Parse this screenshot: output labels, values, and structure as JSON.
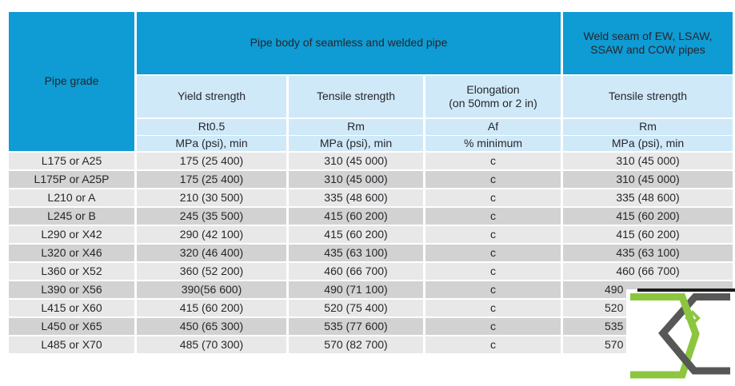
{
  "table": {
    "header": {
      "pipe_grade": "Pipe grade",
      "group_seamless": "Pipe body of seamless and welded pipe",
      "group_weld": "Weld seam of EW, LSAW,\nSSAW and COW pipes",
      "sub": [
        "Yield strength",
        "Tensile strength",
        "Elongation\n(on 50mm or 2 in)",
        "Tensile strength"
      ],
      "symbols": [
        "Rt0.5",
        "Rm",
        "Af",
        "Rm"
      ],
      "units": [
        "MPa (psi), min",
        "MPa (psi), min",
        "% minimum",
        "MPa (psi), min"
      ]
    },
    "rows": [
      {
        "grade": "L175 or A25",
        "yield": "175 (25 400)",
        "tensile": "310 (45 000)",
        "elongation": "c",
        "weld": "310 (45 000)"
      },
      {
        "grade": "L175P or A25P",
        "yield": "175 (25 400)",
        "tensile": "310 (45 000)",
        "elongation": "c",
        "weld": "310 (45 000)"
      },
      {
        "grade": "L210 or A",
        "yield": "210 (30 500)",
        "tensile": "335 (48 600)",
        "elongation": "c",
        "weld": "335 (48 600)"
      },
      {
        "grade": "L245 or B",
        "yield": "245 (35 500)",
        "tensile": "415 (60 200)",
        "elongation": "c",
        "weld": "415 (60 200)"
      },
      {
        "grade": "L290 or X42",
        "yield": "290 (42 100)",
        "tensile": "415 (60 200)",
        "elongation": "c",
        "weld": "415 (60 200)"
      },
      {
        "grade": "L320 or X46",
        "yield": "320 (46 400)",
        "tensile": "435 (63 100)",
        "elongation": "c",
        "weld": "435 (63 100)"
      },
      {
        "grade": "L360 or X52",
        "yield": "360 (52 200)",
        "tensile": "460 (66 700)",
        "elongation": "c",
        "weld": "460 (66 700)"
      },
      {
        "grade": "L390 or X56",
        "yield": "390(56 600)",
        "tensile": "490 (71 100)",
        "elongation": "c",
        "weld": "490",
        "weld_partial": true
      },
      {
        "grade": "L415 or X60",
        "yield": "415 (60 200)",
        "tensile": "520 (75 400)",
        "elongation": "c",
        "weld": "520",
        "weld_partial": true
      },
      {
        "grade": "L450 or X65",
        "yield": "450 (65 300)",
        "tensile": "535 (77 600)",
        "elongation": "c",
        "weld": "535",
        "weld_partial": true
      },
      {
        "grade": "L485 or X70",
        "yield": "485 (70 300)",
        "tensile": "570 (82 700)",
        "elongation": "c",
        "weld": "570",
        "weld_partial": true
      }
    ]
  },
  "logo": {
    "name": "interlocked-x-logo",
    "green": "#8cc63f",
    "gray": "#575756"
  },
  "colors": {
    "header_bg": "#0f9bd3",
    "subheader_bg": "#cfe9f8",
    "row_light": "#e8e8e8",
    "row_dark": "#d2d2d2",
    "text": "#26262c",
    "header_text": "#ffffff",
    "overlay_line": "#1c1c1c"
  }
}
